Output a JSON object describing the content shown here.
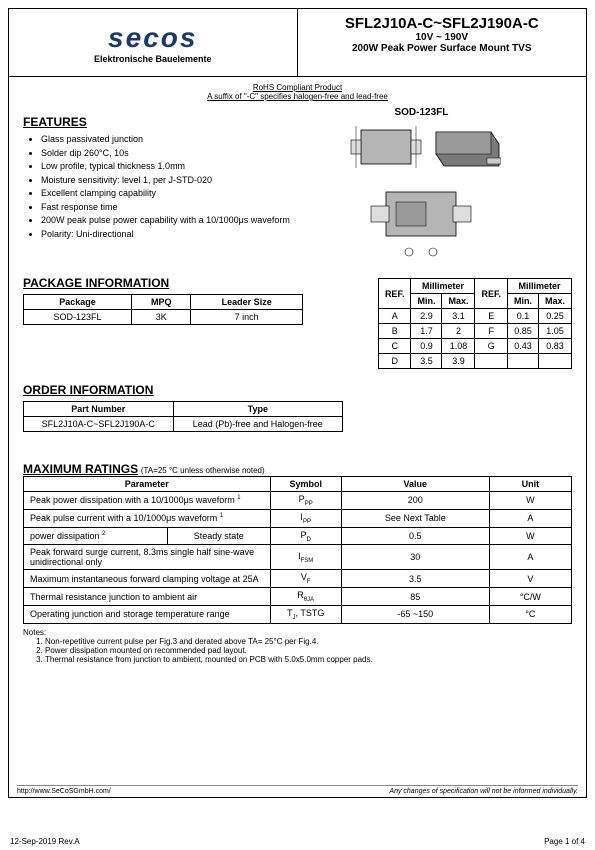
{
  "header": {
    "logo_text": "secos",
    "logo_sub": "Elektronische Bauelemente",
    "title_main": "SFL2J10A-C~SFL2J190A-C",
    "title_sub1": "10V ~ 190V",
    "title_sub2": "200W Peak Power Surface Mount TVS"
  },
  "rohs": {
    "line1": "RoHS Compliant Product",
    "line2": "A suffix of \"-C\" specifies halogen-free and lead-free"
  },
  "features": {
    "title": "FEATURES",
    "items": [
      "Glass passivated junction",
      "Solder dip 260°C, 10s",
      "Low profile, typical thickness 1.0mm",
      "Moisture sensitivity: level 1, per J-STD-020",
      "Excellent clamping capability",
      "Fast response time",
      "200W peak pulse power capability with a 10/1000μs waveform",
      "Polarity: Uni-directional"
    ]
  },
  "pkg_diagram": {
    "label": "SOD-123FL"
  },
  "pkg_info": {
    "title": "PACKAGE INFORMATION",
    "columns": [
      "Package",
      "MPQ",
      "Leader Size"
    ],
    "rows": [
      [
        "SOD-123FL",
        "3K",
        "7 inch"
      ]
    ]
  },
  "dim_table": {
    "header_ref": "REF.",
    "header_mm": "Millimeter",
    "header_min": "Min.",
    "header_max": "Max.",
    "rows": [
      [
        "A",
        "2.9",
        "3.1",
        "E",
        "0.1",
        "0.25"
      ],
      [
        "B",
        "1.7",
        "2",
        "F",
        "0.85",
        "1.05"
      ],
      [
        "C",
        "0.9",
        "1.08",
        "G",
        "0.43",
        "0.83"
      ],
      [
        "D",
        "3.5",
        "3.9",
        "",
        "",
        ""
      ]
    ]
  },
  "order_info": {
    "title": "ORDER INFORMATION",
    "columns": [
      "Part Number",
      "Type"
    ],
    "rows": [
      [
        "SFL2J10A-C~SFL2J190A-C",
        "Lead (Pb)-free and Halogen-free"
      ]
    ]
  },
  "max_ratings": {
    "title": "MAXIMUM RATINGS",
    "title_note": " (TA=25 °C unless otherwise noted)",
    "columns": [
      "Parameter",
      "Symbol",
      "Value",
      "Unit"
    ],
    "rows": [
      {
        "param": "Peak power dissipation with a 10/1000μs waveform ",
        "sup": "1",
        "symbol": "PPP",
        "value": "200",
        "unit": "W",
        "colspan2": false
      },
      {
        "param": "Peak pulse current with a 10/1000μs waveform ",
        "sup": "1",
        "symbol": "IPP",
        "value": "See Next Table",
        "unit": "A",
        "colspan2": false
      },
      {
        "param": "power dissipation ",
        "sup": "2",
        "extra": "Steady state",
        "symbol": "PD",
        "value": "0.5",
        "unit": "W",
        "colspan2": true
      },
      {
        "param": "Peak forward surge current, 8.3ms single half sine-wave unidirectional only",
        "sup": "",
        "symbol": "IFSM",
        "value": "30",
        "unit": "A",
        "colspan2": false
      },
      {
        "param": "Maximum instantaneous forward clamping voltage at 25A",
        "sup": "",
        "symbol": "VF",
        "value": "3.5",
        "unit": "V",
        "colspan2": false
      },
      {
        "param": "Thermal resistance junction to ambient air",
        "sup": "",
        "symbol": "RθJA",
        "value": "85",
        "unit": "°C/W",
        "colspan2": false
      },
      {
        "param": "Operating junction and storage temperature range",
        "sup": "",
        "symbol": "TJ, TSTG",
        "value": "-65 ~150",
        "unit": "°C",
        "colspan2": false
      }
    ]
  },
  "notes": {
    "title": "Notes:",
    "items": [
      "Non-repetitive current pulse per Fig.3 and derated above TA= 25°C per Fig.4.",
      "Power dissipation mounted on recommended pad layout.",
      "Thermal resistance from junction to ambient, mounted on PCB with 5.0x5.0mm copper pads."
    ]
  },
  "footer": {
    "url": "http://www.SeCoSGmbH.com/",
    "disclaimer": "Any changes of specification will not be informed individually.",
    "date": "12-Sep-2019 Rev.A",
    "page": "Page  1  of  4"
  },
  "colors": {
    "border": "#000000",
    "logo": "#1a3a6e",
    "bg": "#ffffff",
    "gray": "#b5b5b5"
  }
}
